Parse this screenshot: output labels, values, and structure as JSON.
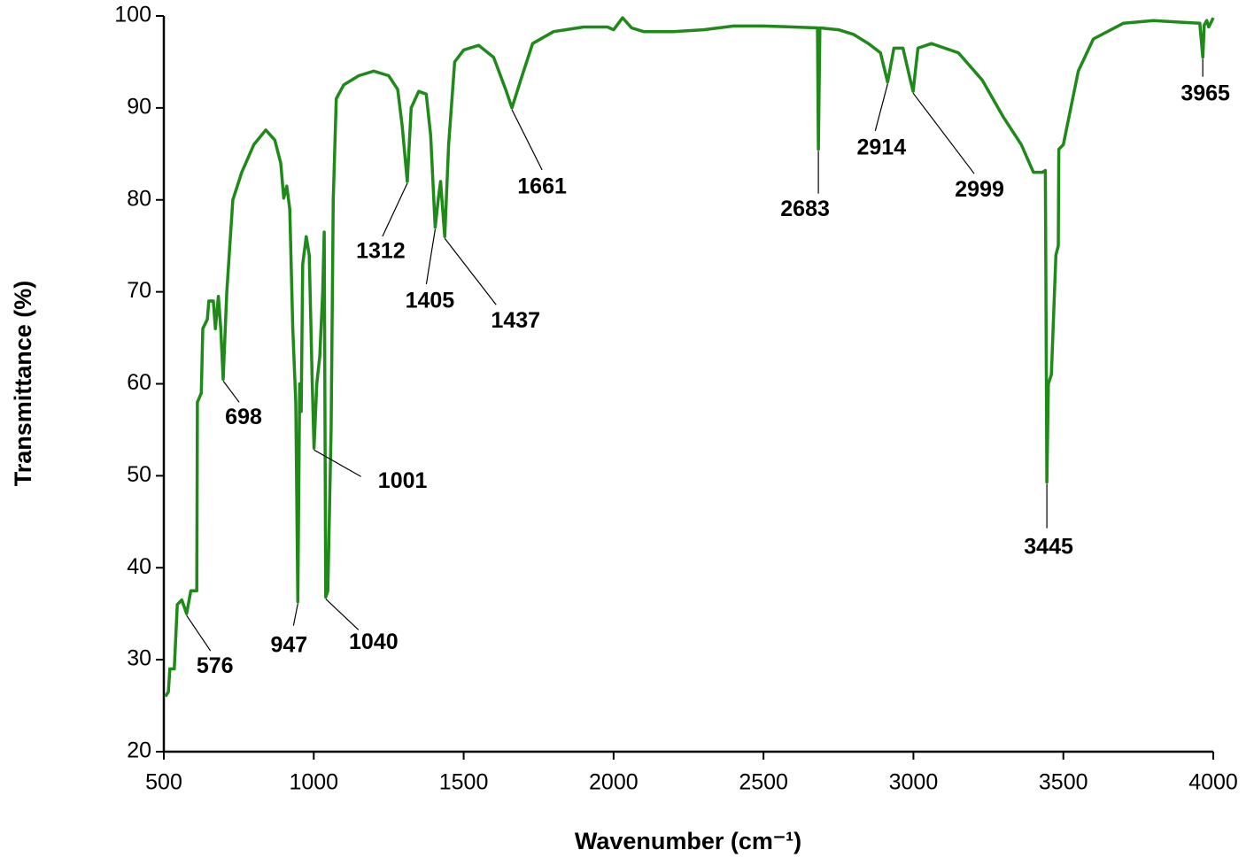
{
  "chart_data": {
    "type": "line",
    "xlabel": "Wavenumber (cm⁻¹)",
    "ylabel": "Transmittance (%)",
    "color": "#1f8a1a",
    "xlim": [
      500,
      4000
    ],
    "xticks": [
      500,
      1000,
      1500,
      2000,
      2500,
      3000,
      3500,
      4000
    ],
    "ylim": [
      20,
      100
    ],
    "yticks": [
      20,
      30,
      40,
      50,
      60,
      70,
      80,
      90,
      100
    ],
    "x": [
      505,
      515,
      520,
      535,
      545,
      560,
      576,
      590,
      610,
      612,
      625,
      630,
      645,
      650,
      665,
      672,
      682,
      690,
      698,
      710,
      730,
      760,
      800,
      840,
      870,
      890,
      900,
      910,
      920,
      930,
      940,
      947,
      953,
      958,
      963,
      975,
      985,
      995,
      1001,
      1010,
      1020,
      1030,
      1035,
      1040,
      1047,
      1058,
      1065,
      1075,
      1100,
      1150,
      1200,
      1250,
      1280,
      1295,
      1312,
      1325,
      1350,
      1375,
      1390,
      1405,
      1415,
      1423,
      1437,
      1450,
      1470,
      1500,
      1550,
      1600,
      1640,
      1661,
      1690,
      1730,
      1800,
      1900,
      1980,
      2000,
      2030,
      2060,
      2100,
      2200,
      2300,
      2400,
      2500,
      2600,
      2680,
      2683,
      2688,
      2750,
      2800,
      2850,
      2890,
      2914,
      2935,
      2965,
      2990,
      2999,
      3015,
      3060,
      3150,
      3230,
      3300,
      3360,
      3400,
      3430,
      3440,
      3445,
      3450,
      3460,
      3475,
      3483,
      3485,
      3500,
      3550,
      3600,
      3700,
      3800,
      3900,
      3955,
      3965,
      3970,
      3978,
      3985,
      4000
    ],
    "values": [
      26,
      26.5,
      29,
      29,
      36,
      36.5,
      35,
      37.5,
      37.5,
      58,
      59,
      66,
      67,
      69,
      69,
      66,
      69.5,
      66,
      60.5,
      70,
      80,
      83,
      86,
      87.6,
      86.5,
      84,
      80.2,
      81.5,
      79,
      66,
      58,
      36.3,
      60,
      57,
      73,
      76,
      74,
      60,
      53,
      60,
      63,
      70,
      76.5,
      36.8,
      37.5,
      55,
      80,
      91,
      92.5,
      93.5,
      94,
      93.5,
      92,
      88,
      82,
      90,
      91.8,
      91.5,
      87,
      77,
      80,
      82,
      76,
      86,
      95,
      96.3,
      96.8,
      95.5,
      92,
      90,
      93,
      97,
      98.3,
      98.8,
      98.8,
      98.5,
      99.8,
      98.7,
      98.3,
      98.3,
      98.5,
      98.9,
      98.9,
      98.8,
      98.7,
      85.5,
      98.7,
      98.5,
      98,
      97,
      96,
      92.8,
      96.5,
      96.5,
      93,
      91.8,
      96.5,
      97,
      96,
      93,
      89,
      86,
      83,
      83,
      83.2,
      49.3,
      60,
      61,
      74,
      75,
      85.5,
      86,
      94,
      97.5,
      99.2,
      99.5,
      99.3,
      99.2,
      95.5,
      99,
      99.5,
      98.8,
      99.8
    ],
    "annotations": [
      576,
      698,
      947,
      1001,
      1040,
      1312,
      1405,
      1437,
      1661,
      2683,
      2914,
      2999,
      3445,
      3965
    ]
  }
}
